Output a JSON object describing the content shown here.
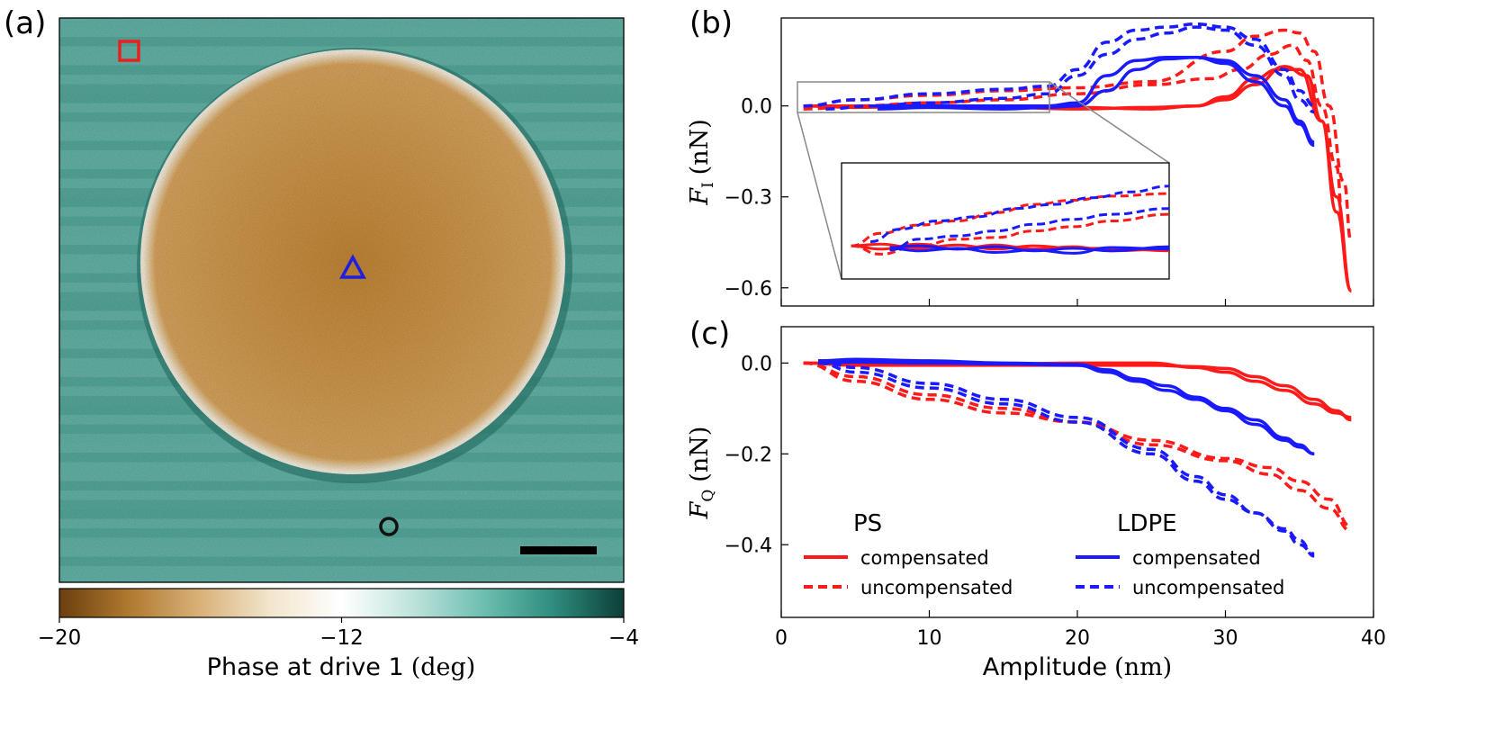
{
  "panels": {
    "a": {
      "label": "(a)",
      "colorbar": {
        "ticks": [
          "−20",
          "−12",
          "−4"
        ],
        "tick_values": [
          -20,
          -12,
          -4
        ],
        "range": [
          -20,
          -4
        ],
        "label_text": "Phase at drive 1",
        "label_unit": "(deg)",
        "colors": [
          "#6b3e0f",
          "#b07a30",
          "#d9b27a",
          "#f2e6cc",
          "#ffffff",
          "#bfe3dc",
          "#6dbfb1",
          "#2f8c7e",
          "#0c3f38"
        ]
      },
      "markers": [
        {
          "shape": "square",
          "color": "#e8201e"
        },
        {
          "shape": "triangle",
          "color": "#1f1fdd"
        },
        {
          "shape": "circle",
          "color": "#111111"
        }
      ],
      "image_colors": {
        "background": "#5fb0a3",
        "disk": "#cf9748",
        "rim": "#f4ead6"
      }
    },
    "b": {
      "label": "(b)",
      "ylabel_sym": "F",
      "ylabel_sub": "I",
      "ylabel_unit": "(nN)",
      "yticks": [
        "0.0",
        "−0.3",
        "−0.6"
      ],
      "ytick_values": [
        0.0,
        -0.3,
        -0.6
      ],
      "ylim": [
        -0.66,
        0.29
      ],
      "xlim": [
        0,
        40
      ]
    },
    "c": {
      "label": "(c)",
      "ylabel_sym": "F",
      "ylabel_sub": "Q",
      "ylabel_unit": "(nN)",
      "yticks": [
        "0.0",
        "−0.2",
        "−0.4"
      ],
      "ytick_values": [
        0.0,
        -0.2,
        -0.4
      ],
      "ylim": [
        -0.56,
        0.08
      ],
      "xlim": [
        0,
        40
      ],
      "xticks": [
        "0",
        "10",
        "20",
        "30",
        "40"
      ],
      "xtick_values": [
        0,
        10,
        20,
        30,
        40
      ],
      "xlabel_text": "Amplitude",
      "xlabel_unit": "(nm)"
    }
  },
  "legend": {
    "ps_title": "PS",
    "ldpe_title": "LDPE",
    "compensated": "compensated",
    "uncompensated": "uncompensated"
  },
  "colors": {
    "ps": "#ff1a1a",
    "ldpe": "#1a1aff"
  },
  "chart_data": [
    {
      "panel": "b",
      "type": "line",
      "xlabel": "",
      "ylabel": "F_I (nN)",
      "xlim": [
        0,
        40
      ],
      "ylim": [
        -0.66,
        0.29
      ],
      "series": [
        {
          "name": "PS compensated",
          "style": "solid",
          "color": "#ff1a1a",
          "x": [
            1.5,
            5,
            10,
            15,
            20,
            25,
            28,
            30,
            32,
            33.5,
            35,
            36.5,
            37.5,
            38.5
          ],
          "y": [
            0.0,
            0.0,
            0.0,
            -0.005,
            -0.01,
            -0.005,
            0.0,
            0.03,
            0.09,
            0.12,
            0.12,
            -0.05,
            -0.35,
            -0.61
          ]
        },
        {
          "name": "PS compensated",
          "style": "solid",
          "color": "#ff1a1a",
          "x": [
            1.5,
            5,
            10,
            15,
            20,
            25,
            28,
            30,
            32,
            34,
            35.5,
            36.5,
            37.5,
            38.5
          ],
          "y": [
            0.0,
            -0.005,
            0.0,
            -0.005,
            -0.005,
            -0.01,
            0.0,
            0.02,
            0.07,
            0.13,
            0.1,
            -0.05,
            -0.3,
            -0.61
          ]
        },
        {
          "name": "PS uncompensated",
          "style": "dashed",
          "color": "#ff1a1a",
          "x": [
            1.5,
            5,
            10,
            15,
            20,
            25,
            30,
            32,
            34,
            35,
            36,
            37,
            38,
            38.5
          ],
          "y": [
            0.0,
            0.02,
            0.035,
            0.05,
            0.06,
            0.08,
            0.18,
            0.23,
            0.25,
            0.24,
            0.18,
            0.0,
            -0.25,
            -0.45
          ]
        },
        {
          "name": "PS uncompensated",
          "style": "dashed",
          "color": "#ff1a1a",
          "x": [
            1.5,
            5,
            10,
            15,
            20,
            25,
            29,
            31,
            33,
            34.5,
            35.5,
            36.5,
            37.5,
            38
          ],
          "y": [
            -0.01,
            0.0,
            0.01,
            0.02,
            0.04,
            0.07,
            0.09,
            0.12,
            0.17,
            0.2,
            0.15,
            0.0,
            -0.2,
            -0.45
          ]
        },
        {
          "name": "LDPE compensated",
          "style": "solid",
          "color": "#1a1aff",
          "x": [
            6.5,
            10,
            15,
            18,
            20,
            22,
            24,
            26,
            28,
            30,
            32,
            34,
            35,
            36
          ],
          "y": [
            0.0,
            0.0,
            0.0,
            0.0,
            0.01,
            0.1,
            0.15,
            0.16,
            0.16,
            0.15,
            0.1,
            0.02,
            -0.05,
            -0.12
          ]
        },
        {
          "name": "LDPE compensated",
          "style": "solid",
          "color": "#1a1aff",
          "x": [
            6.5,
            10,
            15,
            18,
            20,
            22,
            24,
            26,
            28,
            30,
            32,
            34,
            35,
            36
          ],
          "y": [
            -0.01,
            -0.005,
            -0.01,
            -0.005,
            0.0,
            0.05,
            0.12,
            0.155,
            0.16,
            0.14,
            0.08,
            0.0,
            -0.06,
            -0.13
          ]
        },
        {
          "name": "LDPE uncompensated",
          "style": "dashed",
          "color": "#1a1aff",
          "x": [
            1.5,
            5,
            10,
            15,
            18,
            20,
            22,
            24,
            26,
            28,
            30,
            32,
            34,
            35,
            36
          ],
          "y": [
            0.0,
            0.02,
            0.04,
            0.055,
            0.065,
            0.12,
            0.21,
            0.25,
            0.26,
            0.27,
            0.26,
            0.22,
            0.12,
            0.05,
            0.0
          ]
        },
        {
          "name": "LDPE uncompensated",
          "style": "dashed",
          "color": "#1a1aff",
          "x": [
            3,
            6,
            10,
            15,
            18,
            20,
            22,
            24,
            26,
            28,
            30,
            32,
            34,
            35,
            36
          ],
          "y": [
            -0.01,
            0.0,
            0.01,
            0.025,
            0.04,
            0.1,
            0.17,
            0.22,
            0.24,
            0.26,
            0.25,
            0.2,
            0.1,
            0.02,
            -0.02
          ]
        }
      ]
    },
    {
      "panel": "b-inset",
      "type": "line",
      "xlim": [
        1,
        18
      ],
      "ylim": [
        -0.04,
        0.1
      ],
      "series": [
        {
          "name": "PS compensated",
          "style": "solid",
          "color": "#ff1a1a",
          "x": [
            1.5,
            3,
            5,
            7,
            9,
            11,
            13,
            15,
            18
          ],
          "y": [
            0.0,
            -0.004,
            0.002,
            -0.004,
            0.001,
            -0.004,
            -0.001,
            -0.006,
            -0.004
          ]
        },
        {
          "name": "PS compensated",
          "style": "solid",
          "color": "#ff1a1a",
          "x": [
            1.5,
            3,
            5,
            7,
            9,
            11,
            13,
            15,
            18
          ],
          "y": [
            0.0,
            0.002,
            -0.003,
            0.001,
            -0.004,
            0.0,
            -0.003,
            -0.003,
            -0.006
          ]
        },
        {
          "name": "PS uncompensated",
          "style": "dashed",
          "color": "#ff1a1a",
          "x": [
            1.5,
            3,
            5,
            7,
            9,
            11,
            13,
            15,
            18
          ],
          "y": [
            0.0,
            0.015,
            0.025,
            0.03,
            0.04,
            0.05,
            0.055,
            0.06,
            0.063
          ]
        },
        {
          "name": "PS uncompensated",
          "style": "dashed",
          "color": "#ff1a1a",
          "x": [
            1.5,
            3,
            5,
            7,
            9,
            11,
            13,
            15,
            18
          ],
          "y": [
            0.0,
            -0.01,
            0.0,
            0.008,
            0.01,
            0.018,
            0.023,
            0.03,
            0.038
          ]
        },
        {
          "name": "LDPE compensated",
          "style": "solid",
          "color": "#1a1aff",
          "x": [
            3.5,
            5,
            7,
            9,
            11,
            13,
            15,
            18
          ],
          "y": [
            -0.003,
            -0.006,
            -0.003,
            -0.008,
            -0.005,
            -0.009,
            -0.002,
            -0.004
          ]
        },
        {
          "name": "LDPE compensated",
          "style": "solid",
          "color": "#1a1aff",
          "x": [
            3.5,
            5,
            7,
            9,
            11,
            13,
            15,
            18
          ],
          "y": [
            -0.002,
            0.0,
            -0.004,
            -0.001,
            -0.006,
            -0.003,
            -0.006,
            -0.001
          ]
        },
        {
          "name": "LDPE uncompensated",
          "style": "dashed",
          "color": "#1a1aff",
          "x": [
            2.5,
            4,
            6,
            8,
            10,
            12,
            14,
            16,
            18
          ],
          "y": [
            0.005,
            0.02,
            0.03,
            0.035,
            0.045,
            0.05,
            0.058,
            0.065,
            0.072
          ]
        },
        {
          "name": "LDPE uncompensated",
          "style": "dashed",
          "color": "#1a1aff",
          "x": [
            3.5,
            5,
            7,
            9,
            11,
            13,
            15,
            18
          ],
          "y": [
            -0.005,
            0.008,
            0.012,
            0.018,
            0.026,
            0.032,
            0.038,
            0.045
          ]
        }
      ]
    },
    {
      "panel": "c",
      "type": "line",
      "xlabel": "Amplitude (nm)",
      "ylabel": "F_Q (nN)",
      "xlim": [
        0,
        40
      ],
      "ylim": [
        -0.56,
        0.08
      ],
      "series": [
        {
          "name": "PS compensated",
          "style": "solid",
          "color": "#ff1a1a",
          "x": [
            1.5,
            5,
            10,
            15,
            20,
            25,
            28,
            30,
            32,
            34,
            36,
            37.5,
            38.5
          ],
          "y": [
            0.0,
            -0.005,
            -0.005,
            -0.005,
            -0.005,
            -0.005,
            -0.008,
            -0.012,
            -0.03,
            -0.05,
            -0.08,
            -0.105,
            -0.125
          ]
        },
        {
          "name": "PS compensated",
          "style": "solid",
          "color": "#ff1a1a",
          "x": [
            1.5,
            5,
            10,
            15,
            20,
            25,
            28,
            30,
            32,
            34,
            36,
            37.5,
            38.5
          ],
          "y": [
            0.0,
            0.0,
            0.0,
            -0.002,
            0.0,
            0.0,
            -0.01,
            -0.02,
            -0.04,
            -0.06,
            -0.09,
            -0.11,
            -0.12
          ]
        },
        {
          "name": "PS uncompensated",
          "style": "dashed",
          "color": "#ff1a1a",
          "x": [
            1.5,
            5,
            10,
            15,
            20,
            25,
            30,
            33,
            35,
            37,
            38.5
          ],
          "y": [
            0.0,
            -0.03,
            -0.07,
            -0.1,
            -0.13,
            -0.17,
            -0.21,
            -0.23,
            -0.26,
            -0.3,
            -0.36
          ]
        },
        {
          "name": "PS uncompensated",
          "style": "dashed",
          "color": "#ff1a1a",
          "x": [
            1.5,
            5,
            10,
            15,
            20,
            25,
            30,
            33,
            35,
            37,
            38.5
          ],
          "y": [
            0.0,
            -0.04,
            -0.08,
            -0.11,
            -0.13,
            -0.18,
            -0.215,
            -0.245,
            -0.28,
            -0.32,
            -0.37
          ]
        },
        {
          "name": "LDPE compensated",
          "style": "solid",
          "color": "#1a1aff",
          "x": [
            2.5,
            5,
            10,
            15,
            20,
            22,
            24,
            26,
            28,
            30,
            32,
            34,
            35,
            36
          ],
          "y": [
            0.005,
            0.008,
            0.005,
            0.0,
            -0.003,
            -0.015,
            -0.035,
            -0.05,
            -0.075,
            -0.1,
            -0.125,
            -0.165,
            -0.18,
            -0.2
          ]
        },
        {
          "name": "LDPE compensated",
          "style": "solid",
          "color": "#1a1aff",
          "x": [
            2.5,
            5,
            10,
            15,
            20,
            22,
            24,
            26,
            28,
            30,
            32,
            34,
            35,
            36
          ],
          "y": [
            0.0,
            0.002,
            0.0,
            -0.002,
            -0.005,
            -0.02,
            -0.04,
            -0.06,
            -0.08,
            -0.105,
            -0.135,
            -0.17,
            -0.185,
            -0.2
          ]
        },
        {
          "name": "LDPE uncompensated",
          "style": "dashed",
          "color": "#1a1aff",
          "x": [
            2.5,
            5,
            10,
            15,
            20,
            25,
            28,
            30,
            32,
            34,
            35,
            36
          ],
          "y": [
            0.0,
            -0.02,
            -0.055,
            -0.09,
            -0.13,
            -0.2,
            -0.26,
            -0.3,
            -0.33,
            -0.37,
            -0.4,
            -0.42
          ]
        },
        {
          "name": "LDPE uncompensated",
          "style": "dashed",
          "color": "#1a1aff",
          "x": [
            2.5,
            5,
            10,
            15,
            20,
            25,
            28,
            30,
            32,
            34,
            35,
            36
          ],
          "y": [
            0.005,
            -0.01,
            -0.045,
            -0.08,
            -0.12,
            -0.19,
            -0.25,
            -0.29,
            -0.33,
            -0.365,
            -0.39,
            -0.425
          ]
        }
      ]
    }
  ]
}
